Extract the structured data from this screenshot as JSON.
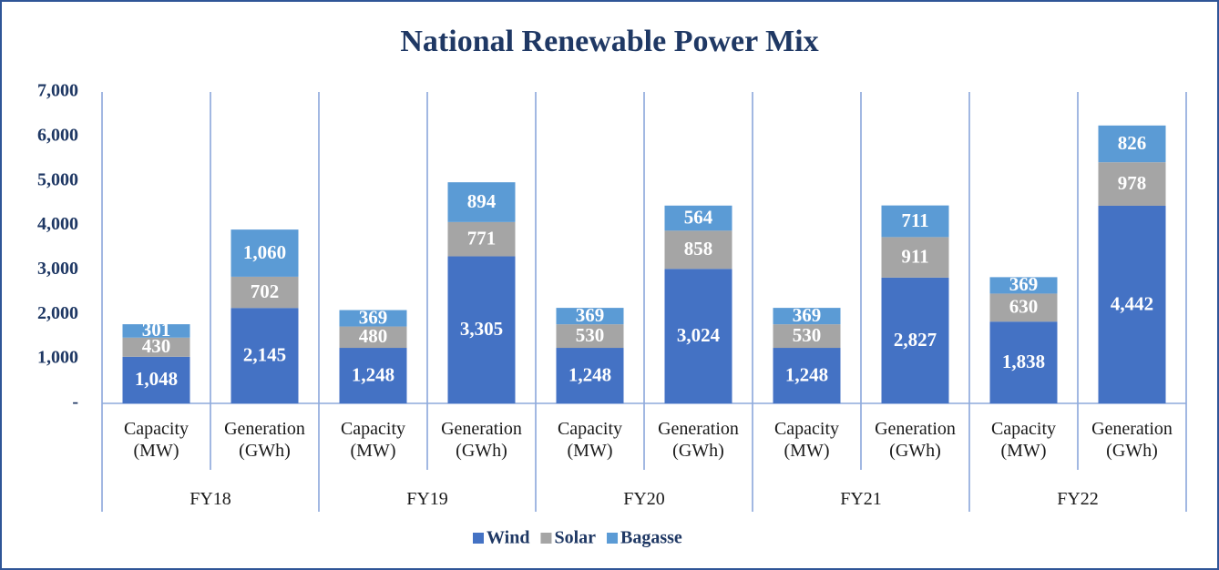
{
  "chart_data": {
    "type": "stacked_bar",
    "title": "National Renewable Power Mix",
    "categories": [
      "Capacity (MW)",
      "Generation (GWh)",
      "Capacity (MW)",
      "Generation (GWh)",
      "Capacity (MW)",
      "Generation (GWh)",
      "Capacity (MW)",
      "Generation (GWh)",
      "Capacity (MW)",
      "Generation (GWh)"
    ],
    "groups": [
      "FY18",
      "FY19",
      "FY20",
      "FY21",
      "FY22"
    ],
    "series": [
      {
        "name": "Wind",
        "color": "#4472c4",
        "values": [
          1048,
          2145,
          1248,
          3305,
          1248,
          3024,
          1248,
          2827,
          1838,
          4442
        ],
        "value_labels": [
          "1,048",
          "2,145",
          "1,248",
          "3,305",
          "1,248",
          "3,024",
          "1,248",
          "2,827",
          "1,838",
          "4,442"
        ]
      },
      {
        "name": "Solar",
        "color": "#a5a5a5",
        "values": [
          430,
          702,
          480,
          771,
          530,
          858,
          530,
          911,
          630,
          978
        ]
      },
      {
        "name": "Bagasse",
        "color": "#5b9bd5",
        "values": [
          301,
          1060,
          369,
          894,
          369,
          564,
          369,
          711,
          369,
          826
        ],
        "value_labels": [
          "301",
          "1,060",
          "369",
          "894",
          "369",
          "564",
          "369",
          "711",
          "369",
          "826"
        ]
      }
    ],
    "ylim": [
      0,
      7000
    ],
    "yticks": [
      {
        "value": 0,
        "label": "-"
      },
      {
        "value": 1000,
        "label": "1,000"
      },
      {
        "value": 2000,
        "label": "2,000"
      },
      {
        "value": 3000,
        "label": "3,000"
      },
      {
        "value": 4000,
        "label": "4,000"
      },
      {
        "value": 5000,
        "label": "5,000"
      },
      {
        "value": 6000,
        "label": "6,000"
      },
      {
        "value": 7000,
        "label": "7,000"
      }
    ],
    "legend": "bottom"
  }
}
